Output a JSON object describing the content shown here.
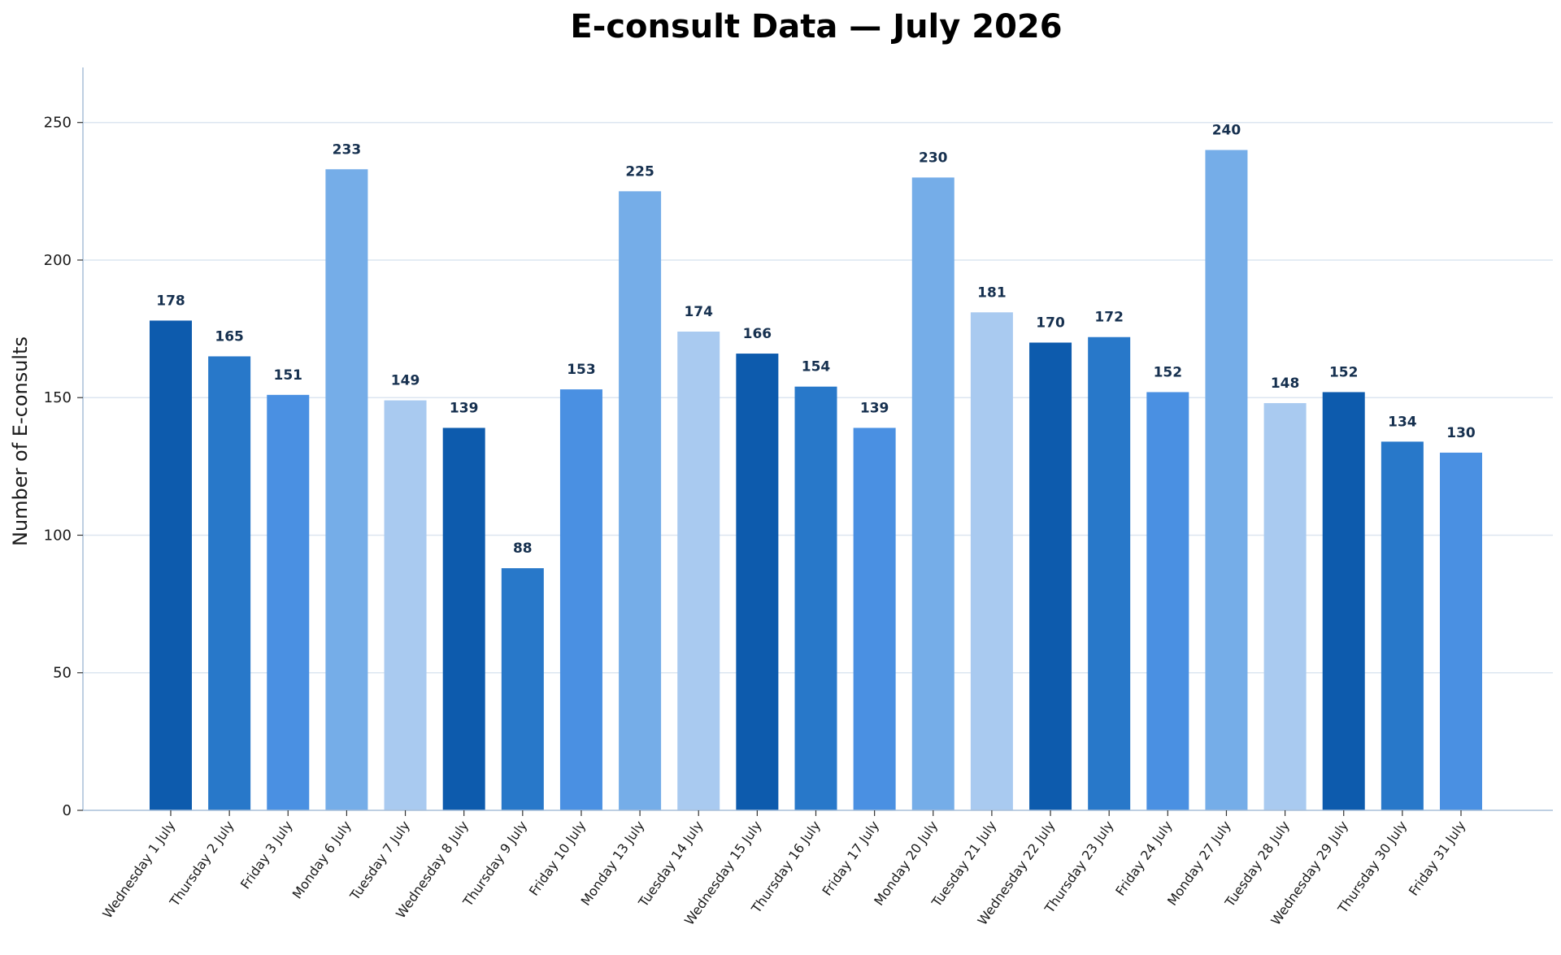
{
  "chart_data": {
    "type": "bar",
    "title": "E-consult Data — July 2026",
    "xlabel": "",
    "ylabel": "Number of E-consults",
    "ylim": [
      0,
      270
    ],
    "yticks": [
      0,
      50,
      100,
      150,
      200,
      250
    ],
    "grid": "horizontal",
    "legend": "none",
    "categories": [
      "Wednesday 1 July",
      "Thursday 2 July",
      "Friday 3 July",
      "Monday 6 July",
      "Tuesday 7 July",
      "Wednesday 8 July",
      "Thursday 9 July",
      "Friday 10 July",
      "Monday 13 July",
      "Tuesday 14 July",
      "Wednesday 15 July",
      "Thursday 16 July",
      "Friday 17 July",
      "Monday 20 July",
      "Tuesday 21 July",
      "Wednesday 22 July",
      "Thursday 23 July",
      "Friday 24 July",
      "Monday 27 July",
      "Tuesday 28 July",
      "Wednesday 29 July",
      "Thursday 30 July",
      "Friday 31 July"
    ],
    "values": [
      178,
      165,
      151,
      233,
      149,
      139,
      88,
      153,
      225,
      174,
      166,
      154,
      139,
      230,
      181,
      170,
      172,
      152,
      240,
      148,
      152,
      134,
      130
    ],
    "colors_by_weekday": {
      "Monday": "#75ade8",
      "Tuesday": "#a9caf0",
      "Wednesday": "#0d5bad",
      "Thursday": "#2878c9",
      "Friday": "#4a90e2"
    },
    "gridline_color": "#dce6f0",
    "axis_color": "#a8bfd8",
    "value_label_color": "#16304f"
  }
}
